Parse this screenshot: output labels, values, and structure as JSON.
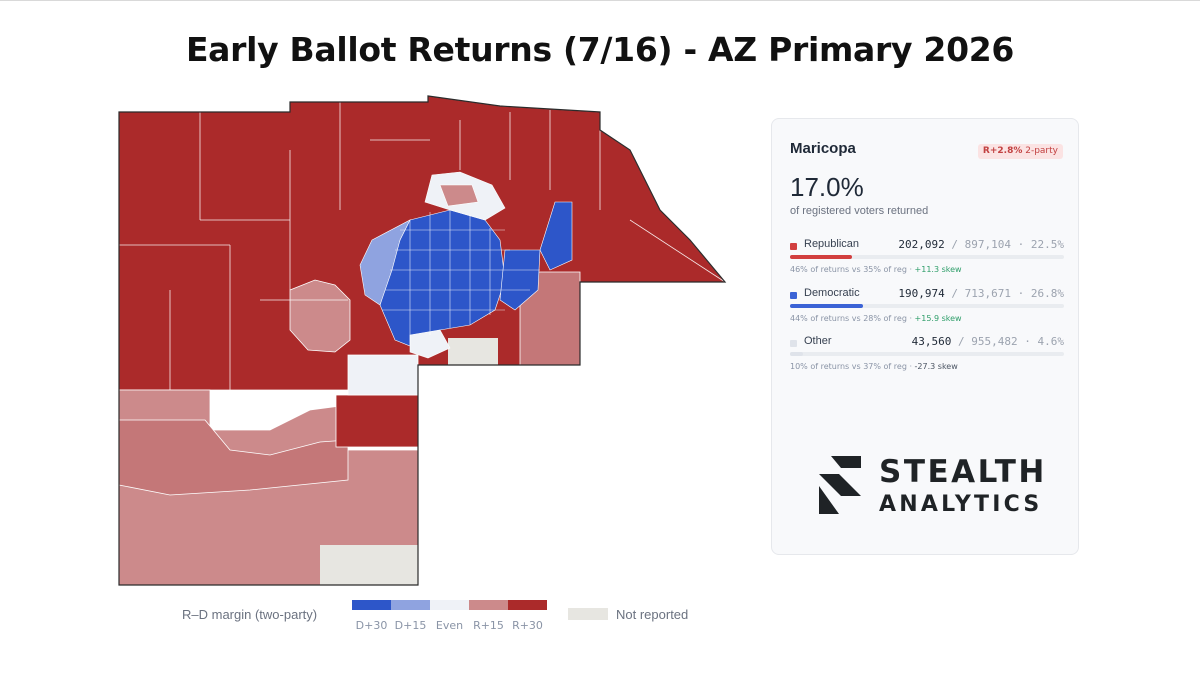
{
  "title": "Early Ballot Returns (7/16) - AZ Primary 2026",
  "colors": {
    "d30": "#2d56c9",
    "d15": "#8fa3e0",
    "even": "#eff2f7",
    "r15": "#cc8a8b",
    "r30": "#ab2a2a",
    "not_reported": "#e7e6e1"
  },
  "legend": {
    "label": "R–D margin (two-party)",
    "ticks": [
      "D+30",
      "D+15",
      "Even",
      "R+15",
      "R+30"
    ],
    "not_reported": "Not reported"
  },
  "panel": {
    "county": "Maricopa",
    "badge_value": "R+2.8%",
    "badge_suffix": "2-party",
    "turnout": "17.0%",
    "turnout_caption": "of registered voters returned",
    "parties": [
      {
        "name": "Republican",
        "returned": "202,092",
        "registered": "897,104",
        "rate": "22.5%",
        "rate_value": 22.5,
        "color": "#d23f3f",
        "returns_share": "46%",
        "reg_share": "35%",
        "skew": "+11.3 skew"
      },
      {
        "name": "Democratic",
        "returned": "190,974",
        "registered": "713,671",
        "rate": "26.8%",
        "rate_value": 26.8,
        "color": "#3b63d6",
        "returns_share": "44%",
        "reg_share": "28%",
        "skew": "+15.9 skew"
      },
      {
        "name": "Other",
        "returned": "43,560",
        "registered": "955,482",
        "rate": "4.6%",
        "rate_value": 4.6,
        "color": "#dfe3ea",
        "returns_share": "10%",
        "reg_share": "37%",
        "skew": "-27.3 skew"
      }
    ]
  },
  "logo": {
    "line1": "STEALTH",
    "line2": "ANALYTICS"
  }
}
